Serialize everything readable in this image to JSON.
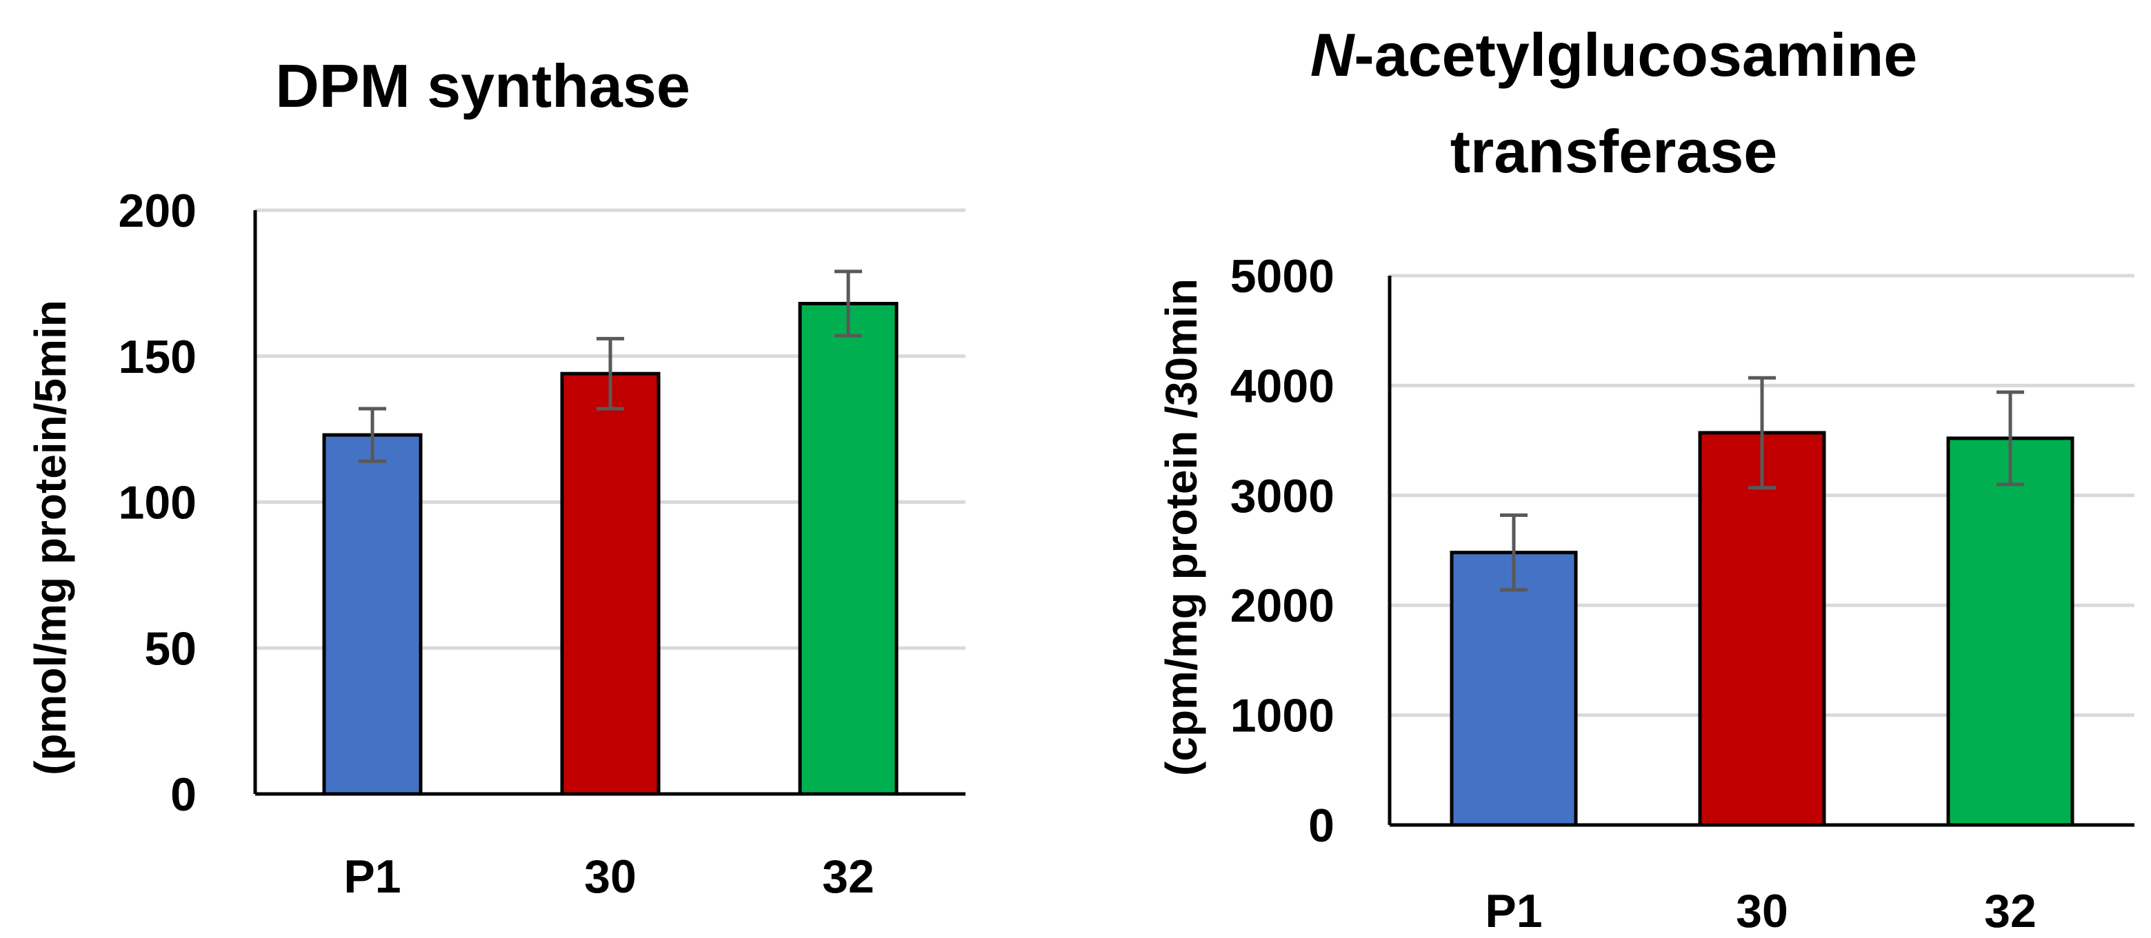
{
  "chart_data": [
    {
      "type": "bar",
      "title": "DPM synthase",
      "title_prefix": "",
      "xlabel": "",
      "ylabel": "(pmol/mg protein/5min",
      "categories": [
        "P1",
        "30",
        "32"
      ],
      "values": [
        123,
        144,
        168
      ],
      "errors": [
        9,
        12,
        11
      ],
      "colors": [
        "#4472C4",
        "#C00000",
        "#00B050"
      ],
      "ylim": [
        0,
        200
      ],
      "yticks": [
        0,
        50,
        100,
        150,
        200
      ],
      "grid": true
    },
    {
      "type": "bar",
      "title": "-acetylglucosamine",
      "title_prefix": "N",
      "title_line2": "transferase",
      "xlabel": "",
      "ylabel": "(cpm/mg protein  /30min",
      "categories": [
        "P1",
        "30",
        "32"
      ],
      "values": [
        2480,
        3570,
        3520
      ],
      "errors": [
        340,
        500,
        420
      ],
      "colors": [
        "#4472C4",
        "#C00000",
        "#00B050"
      ],
      "ylim": [
        0,
        5000
      ],
      "yticks": [
        0,
        1000,
        2000,
        3000,
        4000,
        5000
      ],
      "grid": true
    }
  ]
}
